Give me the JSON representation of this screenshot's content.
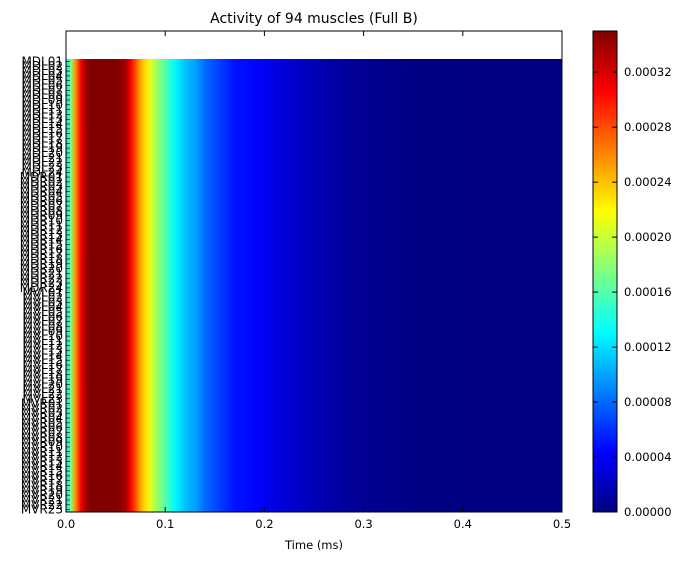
{
  "chart_data": {
    "type": "heatmap",
    "title": "Activity of 94 muscles (Full B)",
    "xlabel": "Time (ms)",
    "ylabel": "",
    "xlim": [
      0.0,
      0.5
    ],
    "x_ticks": [
      "0.0",
      "0.1",
      "0.2",
      "0.3",
      "0.4",
      "0.5"
    ],
    "x_tick_values": [
      0.0,
      0.1,
      0.2,
      0.3,
      0.4,
      0.5
    ],
    "data_x_range": [
      0.0,
      0.5
    ],
    "colormap": "jet",
    "colorbar": {
      "min": 0.0,
      "max": 0.00035,
      "ticks": [
        "0.00000",
        "0.00004",
        "0.00008",
        "0.00012",
        "0.00016",
        "0.00020",
        "0.00024",
        "0.00028",
        "0.00032"
      ],
      "tick_values": [
        0.0,
        4e-05,
        8e-05,
        0.00012,
        0.00016,
        0.0002,
        0.00024,
        0.00028,
        0.00032
      ]
    },
    "rows_count": 94,
    "row_labels": [
      "MDL01",
      "MDL02",
      "MDL03",
      "MDL04",
      "MDL05",
      "MDL06",
      "MDL07",
      "MDL08",
      "MDL09",
      "MDL10",
      "MDL11",
      "MDL12",
      "MDL13",
      "MDL14",
      "MDL15",
      "MDL16",
      "MDL17",
      "MDL18",
      "MDL19",
      "MDL20",
      "MDL21",
      "MDL22",
      "MDL23",
      "MDL24",
      "MDR01",
      "MDR02",
      "MDR03",
      "MDR04",
      "MDR05",
      "MDR06",
      "MDR07",
      "MDR08",
      "MDR09",
      "MDR10",
      "MDR11",
      "MDR12",
      "MDR13",
      "MDR14",
      "MDR15",
      "MDR16",
      "MDR17",
      "MDR18",
      "MDR19",
      "MDR20",
      "MDR21",
      "MDR22",
      "MDR23",
      "MDR24",
      "MVL01",
      "MVL02",
      "MVL03",
      "MVL04",
      "MVL05",
      "MVL06",
      "MVL07",
      "MVL08",
      "MVL09",
      "MVL10",
      "MVL11",
      "MVL12",
      "MVL13",
      "MVL14",
      "MVL15",
      "MVL16",
      "MVL17",
      "MVL18",
      "MVL19",
      "MVL20",
      "MVL21",
      "MVL22",
      "MVL23",
      "MVR01",
      "MVR02",
      "MVR03",
      "MVR04",
      "MVR05",
      "MVR06",
      "MVR07",
      "MVR08",
      "MVR09",
      "MVR10",
      "MVR11",
      "MVR12",
      "MVR13",
      "MVR14",
      "MVR15",
      "MVR16",
      "MVR17",
      "MVR18",
      "MVR19",
      "MVR20",
      "MVR21",
      "MVR22",
      "MVR23"
    ],
    "time_profile": {
      "t": [
        0.0,
        0.005,
        0.01,
        0.015,
        0.02,
        0.025,
        0.03,
        0.04,
        0.05,
        0.06,
        0.065,
        0.07,
        0.075,
        0.08,
        0.085,
        0.09,
        0.1,
        0.11,
        0.12,
        0.13,
        0.14,
        0.15,
        0.17,
        0.19,
        0.22,
        0.25,
        0.28,
        0.31,
        0.35,
        0.4,
        0.5
      ],
      "activity": [
        0.00012,
        0.00018,
        0.00026,
        0.00031,
        0.00034,
        0.00035,
        0.00035,
        0.00035,
        0.00035,
        0.00034,
        0.00031,
        0.00028,
        0.00025,
        0.00023,
        0.00021,
        0.00019,
        0.00016,
        0.00013,
        0.00011,
        0.0001,
        8e-05,
        7e-05,
        5e-05,
        4.5e-05,
        3e-05,
        1.8e-05,
        1e-05,
        5e-06,
        2e-06,
        5e-07,
        0.0
      ]
    }
  }
}
